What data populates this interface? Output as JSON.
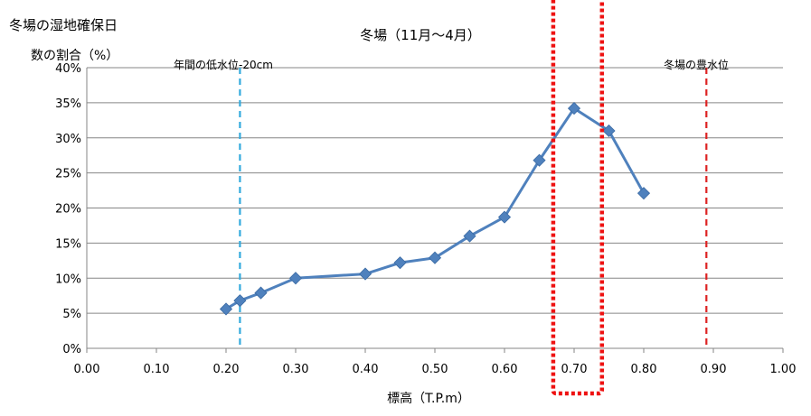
{
  "chart_data": {
    "type": "line",
    "title": "冬場（11月～4月）",
    "ylabel_line1": "冬場の湿地確保日",
    "ylabel_line2": "数の割合（%）",
    "xlabel": "標高（T.P.m）",
    "xlim": [
      0,
      1
    ],
    "ylim": [
      0,
      40
    ],
    "xticks": [
      0.0,
      0.1,
      0.2,
      0.3,
      0.4,
      0.5,
      0.6,
      0.7,
      0.8,
      0.9,
      1.0
    ],
    "xtick_labels": [
      "0.00",
      "0.10",
      "0.20",
      "0.30",
      "0.40",
      "0.50",
      "0.60",
      "0.70",
      "0.80",
      "0.90",
      "1.00"
    ],
    "yticks": [
      0,
      5,
      10,
      15,
      20,
      25,
      30,
      35,
      40
    ],
    "ytick_labels": [
      "0%",
      "5%",
      "10%",
      "15%",
      "20%",
      "25%",
      "30%",
      "35%",
      "40%"
    ],
    "grid": "horizontal",
    "series": [
      {
        "color": "#4f81bd",
        "marker": "diamond",
        "x": [
          0.2,
          0.22,
          0.25,
          0.3,
          0.4,
          0.45,
          0.5,
          0.55,
          0.6,
          0.65,
          0.7,
          0.75,
          0.8
        ],
        "y": [
          5.6,
          6.8,
          7.9,
          10.0,
          10.6,
          12.2,
          12.9,
          16.0,
          18.7,
          26.8,
          34.2,
          31.0,
          22.1
        ]
      }
    ],
    "reference_lines": [
      {
        "x": 0.22,
        "label": "年間の低水位-20cm",
        "color": "#33aadd"
      },
      {
        "x": 0.89,
        "label": "冬場の豊水位",
        "color": "#dd2222"
      }
    ],
    "highlight": {
      "x_range": [
        0.67,
        0.74
      ],
      "color": "#ee1111"
    }
  }
}
